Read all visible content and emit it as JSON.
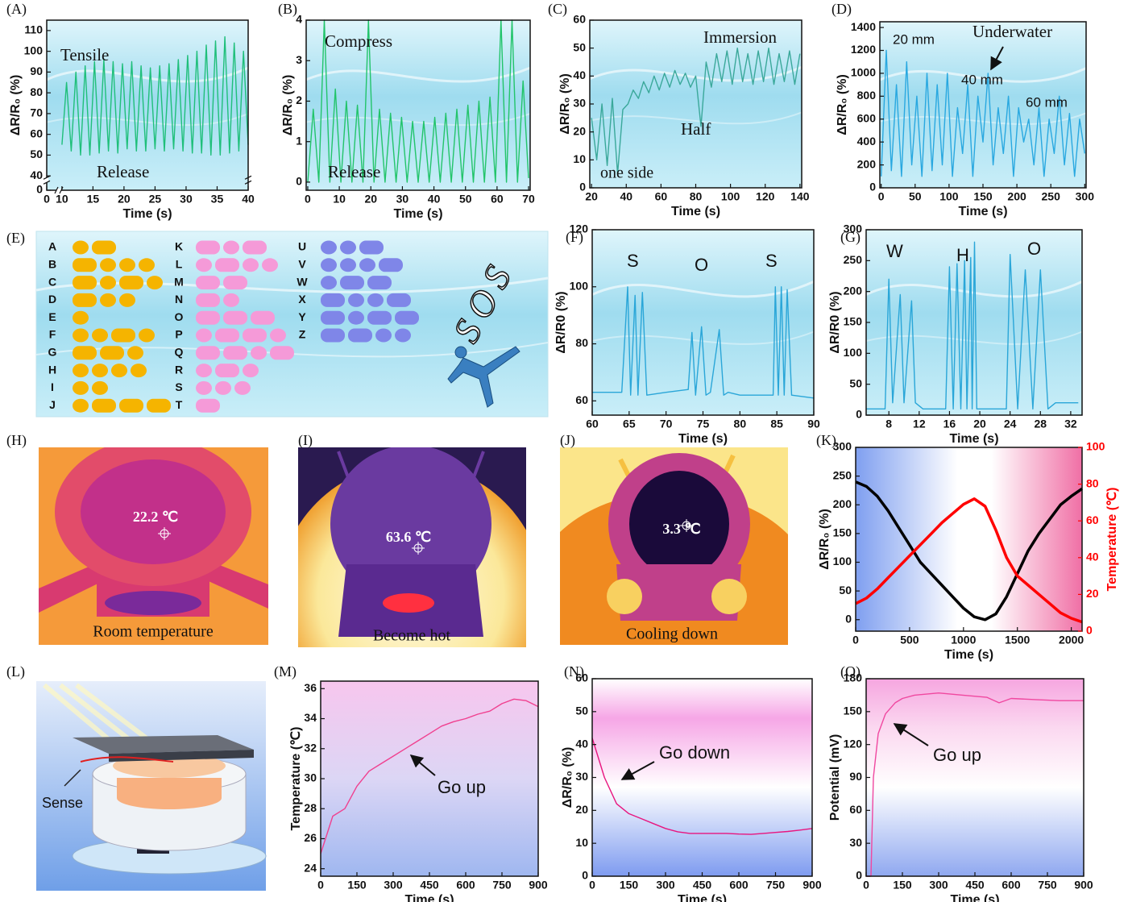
{
  "chart_data": [
    {
      "type": "line",
      "label": "(A)",
      "xlabel": "Time (s)",
      "ylabel": "ΔR/R₀ (%)",
      "x": [
        10,
        10.75,
        11.5,
        12.25,
        13,
        13.75,
        14.5,
        15.25,
        16,
        16.75,
        17.5,
        18.25,
        19,
        19.75,
        20.5,
        21.25,
        22,
        22.75,
        23.5,
        24.25,
        25,
        25.75,
        26.5,
        27.25,
        28,
        28.75,
        29.5,
        30.25,
        31,
        31.75,
        32.5,
        33.25,
        34,
        34.75,
        35.5,
        36.25,
        37,
        37.75,
        38.5,
        39.25,
        40
      ],
      "series": [
        {
          "color": "#1fbf7a",
          "values": [
            55,
            85,
            52,
            90,
            50,
            93,
            50,
            95,
            51,
            96,
            52,
            95,
            51,
            94,
            53,
            95,
            52,
            93,
            52,
            92,
            53,
            93,
            52,
            94,
            53,
            96,
            52,
            98,
            51,
            100,
            51,
            103,
            50,
            105,
            50,
            107,
            51,
            104,
            52,
            100,
            55
          ]
        }
      ],
      "xlim": [
        0,
        40
      ],
      "xbreak": [
        1,
        9.5
      ],
      "xticks": [
        0,
        10,
        15,
        20,
        25,
        30,
        35,
        40
      ],
      "ylim": [
        0,
        115
      ],
      "ybreak": [
        1,
        38
      ],
      "yticks": [
        0,
        40,
        50,
        60,
        70,
        80,
        90,
        100,
        110
      ],
      "annotations": [
        "Tensile",
        "Release"
      ]
    },
    {
      "type": "line",
      "label": "(B)",
      "xlabel": "Time (s)",
      "ylabel": "ΔR/R₀ (%)",
      "x": [
        0,
        1.75,
        3.5,
        5.25,
        7,
        8.75,
        10.5,
        12.25,
        14,
        15.75,
        17.5,
        19.25,
        21,
        22.75,
        24.5,
        26.25,
        28,
        29.75,
        31.5,
        33.25,
        35,
        36.75,
        38.5,
        40.25,
        42,
        43.75,
        45.5,
        47.25,
        49,
        50.75,
        52.5,
        54.25,
        56,
        57.75,
        59.5,
        61.25,
        63,
        64.75,
        66.5,
        68.25,
        70
      ],
      "series": [
        {
          "color": "#22c46a",
          "values": [
            0,
            1.8,
            0,
            4,
            0,
            2.3,
            0,
            2.0,
            0,
            1.9,
            0,
            4,
            0,
            1.8,
            0,
            1.7,
            0,
            1.6,
            0,
            1.5,
            0,
            1.5,
            0,
            1.6,
            0,
            1.7,
            0,
            1.8,
            0,
            1.9,
            0,
            2.0,
            0,
            2.1,
            0,
            4,
            0,
            4,
            0,
            2.5,
            0.1
          ]
        }
      ],
      "xlim": [
        -0.5,
        70.5
      ],
      "xticks": [
        0,
        10,
        20,
        30,
        40,
        50,
        60,
        70
      ],
      "ylim": [
        -0.2,
        4
      ],
      "yticks": [
        0,
        1,
        2,
        3,
        4
      ],
      "annotations": [
        "Compress",
        "Release"
      ]
    },
    {
      "type": "line",
      "label": "(C)",
      "xlabel": "Time (s)",
      "ylabel": "ΔR/R₀ (%)",
      "x": [
        20,
        23,
        26,
        29,
        32,
        35,
        38,
        41,
        44,
        47,
        50,
        53,
        56,
        59,
        62,
        65,
        68,
        71,
        74,
        77,
        80,
        83,
        86,
        89,
        92,
        95,
        98,
        101,
        104,
        107,
        110,
        113,
        116,
        119,
        122,
        125,
        128,
        131,
        134,
        137,
        140
      ],
      "series": [
        {
          "color": "#3aa89a",
          "values": [
            25,
            10,
            30,
            8,
            32,
            5,
            28,
            30,
            35,
            32,
            38,
            34,
            40,
            35,
            41,
            36,
            42,
            37,
            41,
            36,
            40,
            22,
            45,
            36,
            48,
            38,
            49,
            37,
            50,
            38,
            48,
            37,
            49,
            38,
            50,
            37,
            48,
            38,
            49,
            37,
            48
          ]
        }
      ],
      "xlim": [
        19,
        141
      ],
      "xticks": [
        20,
        40,
        60,
        80,
        100,
        120,
        140
      ],
      "ylim": [
        0,
        60
      ],
      "yticks": [
        0,
        10,
        20,
        30,
        40,
        50,
        60
      ],
      "annotations": [
        "Immersion",
        "Half",
        "one side"
      ]
    },
    {
      "type": "line",
      "label": "(D)",
      "xlabel": "Time (s)",
      "ylabel": "ΔR/R₀ (%)",
      "x": [
        0,
        7.5,
        15,
        22.5,
        30,
        37.5,
        45,
        52.5,
        60,
        67.5,
        75,
        82.5,
        90,
        97.5,
        105,
        112.5,
        120,
        127.5,
        135,
        142.5,
        150,
        157.5,
        165,
        172.5,
        180,
        187.5,
        195,
        202.5,
        210,
        217.5,
        225,
        232.5,
        240,
        247.5,
        255,
        262.5,
        270,
        277.5,
        285,
        292.5,
        300
      ],
      "series": [
        {
          "color": "#29a8e0",
          "values": [
            100,
            1200,
            150,
            900,
            100,
            1100,
            200,
            800,
            100,
            1000,
            150,
            900,
            200,
            1000,
            100,
            700,
            300,
            900,
            100,
            800,
            400,
            1000,
            200,
            700,
            300,
            800,
            100,
            700,
            400,
            600,
            200,
            700,
            100,
            600,
            300,
            800,
            200,
            650,
            100,
            600,
            300
          ]
        }
      ],
      "xlim": [
        -2,
        302
      ],
      "xticks": [
        0,
        50,
        100,
        150,
        200,
        250,
        300
      ],
      "ylim": [
        0,
        1450
      ],
      "yticks": [
        0,
        200,
        400,
        600,
        800,
        1000,
        1200,
        1400
      ],
      "annotations": [
        "20 mm",
        "Underwater",
        "40 mm",
        "60 mm"
      ]
    },
    {
      "type": "line",
      "label": "(F)",
      "xlabel": "Time (s)",
      "ylabel": "ΔR/R0 (%)",
      "x": [
        60,
        64,
        64.8,
        65.2,
        65.8,
        66.2,
        66.8,
        67.4,
        70,
        73,
        73.5,
        74,
        74.8,
        75.4,
        76,
        77.2,
        77.8,
        78.4,
        80,
        84.5,
        84.8,
        85.2,
        85.6,
        86,
        86.4,
        87,
        90
      ],
      "series": [
        {
          "color": "#2aa6d8",
          "values": [
            63,
            63,
            100,
            62,
            97,
            62,
            98,
            62,
            63,
            64,
            84,
            62,
            86,
            62,
            63,
            85,
            62,
            63,
            62,
            62,
            100,
            62,
            100,
            62,
            99,
            62,
            61
          ]
        }
      ],
      "xlim": [
        60,
        90
      ],
      "xticks": [
        60,
        65,
        70,
        75,
        80,
        85,
        90
      ],
      "ylim": [
        55,
        120
      ],
      "yticks": [
        60,
        80,
        100,
        120
      ],
      "annotations": [
        "S",
        "O",
        "S"
      ]
    },
    {
      "type": "line",
      "label": "(G)",
      "xlabel": "Time (s)",
      "ylabel": "ΔR/R0 (%)",
      "x": [
        5,
        7.5,
        8,
        8.5,
        9.5,
        10,
        11,
        11.5,
        12.5,
        15.5,
        16,
        16.5,
        17,
        17.5,
        18,
        18.3,
        18.8,
        19,
        19.3,
        19.6,
        23.5,
        24,
        25,
        26,
        27,
        28,
        29,
        30,
        33
      ],
      "series": [
        {
          "color": "#2aa6d8",
          "values": [
            10,
            10,
            220,
            20,
            195,
            20,
            185,
            20,
            10,
            10,
            240,
            10,
            245,
            10,
            250,
            10,
            255,
            10,
            280,
            10,
            10,
            260,
            10,
            235,
            10,
            235,
            10,
            20,
            20
          ]
        }
      ],
      "xlim": [
        5,
        33.5
      ],
      "xticks": [
        8,
        12,
        16,
        20,
        24,
        28,
        32
      ],
      "ylim": [
        0,
        300
      ],
      "yticks": [
        0,
        50,
        100,
        150,
        200,
        250,
        300
      ],
      "annotations": [
        "W",
        "H",
        "O"
      ]
    },
    {
      "type": "line",
      "label": "(K)",
      "xlabel": "Time (s)",
      "ylabel": "ΔR/R₀ (%)",
      "y2label": "Temperature (℃)",
      "x": [
        0,
        100,
        200,
        300,
        400,
        500,
        600,
        700,
        800,
        900,
        1000,
        1100,
        1200,
        1300,
        1400,
        1500,
        1600,
        1700,
        1800,
        1900,
        2000,
        2100
      ],
      "series": [
        {
          "color": "#000000",
          "values": [
            240,
            232,
            215,
            190,
            160,
            130,
            100,
            80,
            60,
            40,
            20,
            5,
            0,
            10,
            40,
            80,
            120,
            150,
            175,
            200,
            215,
            228
          ]
        },
        {
          "color": "#ff0000",
          "axis": "y2",
          "values": [
            15,
            18,
            23,
            29,
            35,
            41,
            47,
            53,
            59,
            64,
            69,
            72,
            68,
            55,
            40,
            30,
            25,
            20,
            15,
            10,
            7,
            5
          ]
        }
      ],
      "xlim": [
        0,
        2100
      ],
      "xticks": [
        0,
        500,
        1000,
        1500,
        2000
      ],
      "ylim": [
        -20,
        300
      ],
      "yticks": [
        0,
        50,
        100,
        150,
        200,
        250,
        300
      ],
      "y2lim": [
        0,
        100
      ],
      "y2ticks": [
        0,
        20,
        40,
        60,
        80,
        100
      ],
      "annotations": []
    },
    {
      "type": "line",
      "label": "(M)",
      "xlabel": "Time (s)",
      "ylabel": "Temperature (℃)",
      "x": [
        0,
        50,
        100,
        150,
        200,
        250,
        300,
        350,
        400,
        450,
        500,
        550,
        600,
        650,
        700,
        750,
        800,
        850,
        900
      ],
      "series": [
        {
          "color": "#f0408f",
          "values": [
            25,
            27.5,
            28,
            29.5,
            30.5,
            31,
            31.5,
            32,
            32.5,
            33,
            33.5,
            33.8,
            34,
            34.3,
            34.5,
            35,
            35.3,
            35.2,
            34.8
          ]
        }
      ],
      "xlim": [
        0,
        900
      ],
      "xticks": [
        0,
        150,
        300,
        450,
        600,
        750,
        900
      ],
      "ylim": [
        23.5,
        36.5
      ],
      "yticks": [
        24,
        26,
        28,
        30,
        32,
        34,
        36
      ],
      "annotations": [
        "Go up"
      ]
    },
    {
      "type": "line",
      "label": "(N)",
      "xlabel": "Time (s)",
      "ylabel": "ΔR/R₀ (%)",
      "x": [
        0,
        50,
        100,
        150,
        200,
        250,
        300,
        350,
        400,
        450,
        500,
        550,
        600,
        650,
        700,
        750,
        800,
        850,
        900
      ],
      "series": [
        {
          "color": "#e8157f",
          "values": [
            42,
            30,
            22,
            19,
            17.5,
            16,
            14.5,
            13.5,
            13,
            13,
            13,
            13,
            12.8,
            12.7,
            13,
            13.3,
            13.6,
            14,
            14.5
          ]
        }
      ],
      "xlim": [
        0,
        900
      ],
      "xticks": [
        0,
        150,
        300,
        450,
        600,
        750,
        900
      ],
      "ylim": [
        0,
        60
      ],
      "yticks": [
        0,
        10,
        20,
        30,
        40,
        50,
        60
      ],
      "annotations": [
        "Go down"
      ]
    },
    {
      "type": "line",
      "label": "(O)",
      "xlabel": "Time (s)",
      "ylabel": "Potential (mV)",
      "x": [
        0,
        20,
        30,
        50,
        80,
        120,
        150,
        200,
        300,
        400,
        500,
        550,
        600,
        700,
        800,
        900
      ],
      "series": [
        {
          "color": "#f048a0",
          "values": [
            0,
            0,
            90,
            130,
            148,
            158,
            162,
            165,
            167,
            165,
            163,
            158,
            162,
            161,
            160,
            160
          ]
        }
      ],
      "xlim": [
        0,
        900
      ],
      "xticks": [
        0,
        150,
        300,
        450,
        600,
        750,
        900
      ],
      "ylim": [
        0,
        180
      ],
      "yticks": [
        0,
        30,
        60,
        90,
        120,
        150,
        180
      ],
      "annotations": [
        "Go up"
      ]
    }
  ],
  "morse": {
    "label": "(E)",
    "word": "SOS",
    "groups": [
      {
        "color": "#f5b400",
        "letters": [
          {
            "letter": "A",
            "code": ".-"
          },
          {
            "letter": "B",
            "code": "-..."
          },
          {
            "letter": "C",
            "code": "-.-."
          },
          {
            "letter": "D",
            "code": "-.."
          },
          {
            "letter": "E",
            "code": "."
          },
          {
            "letter": "F",
            "code": "..-."
          },
          {
            "letter": "G",
            "code": "--."
          },
          {
            "letter": "H",
            "code": "...."
          },
          {
            "letter": "I",
            "code": ".."
          },
          {
            "letter": "J",
            "code": ".---"
          }
        ]
      },
      {
        "color": "#f59ad8",
        "letters": [
          {
            "letter": "K",
            "code": "-.-"
          },
          {
            "letter": "L",
            "code": ".-.."
          },
          {
            "letter": "M",
            "code": "--"
          },
          {
            "letter": "N",
            "code": "-."
          },
          {
            "letter": "O",
            "code": "---"
          },
          {
            "letter": "P",
            "code": ".--."
          },
          {
            "letter": "Q",
            "code": "--.-"
          },
          {
            "letter": "R",
            "code": ".-."
          },
          {
            "letter": "S",
            "code": "..."
          },
          {
            "letter": "T",
            "code": "-"
          }
        ]
      },
      {
        "color": "#7f86e8",
        "letters": [
          {
            "letter": "U",
            "code": "..-"
          },
          {
            "letter": "V",
            "code": "...-"
          },
          {
            "letter": "W",
            "code": ".--"
          },
          {
            "letter": "X",
            "code": "-..-"
          },
          {
            "letter": "Y",
            "code": "-.--"
          },
          {
            "letter": "Z",
            "code": "--.."
          }
        ]
      }
    ]
  },
  "photos": [
    {
      "label": "(H)",
      "reading": "22.2 ℃",
      "caption": "Room temperature"
    },
    {
      "label": "(I)",
      "reading": "63.6 ℃",
      "caption": "Become hot"
    },
    {
      "label": "(J)",
      "reading": "3.3 ℃",
      "caption": "Cooling down"
    }
  ],
  "illustration": {
    "label": "(L)",
    "text": "Sense"
  }
}
